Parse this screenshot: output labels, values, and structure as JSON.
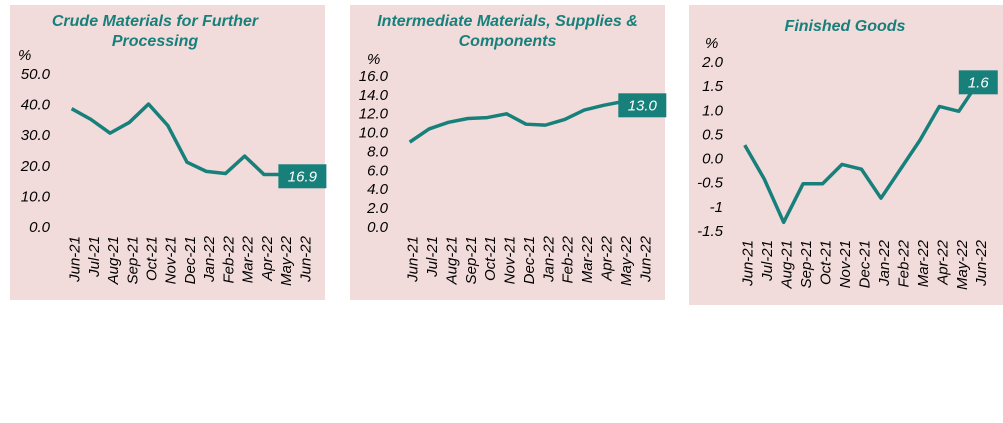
{
  "chart_data": [
    {
      "type": "line",
      "title": "Crude Materials for Further Processing",
      "y_label": "%",
      "categories": [
        "Jun-21",
        "Jul-21",
        "Aug-21",
        "Sep-21",
        "Oct-21",
        "Nov-21",
        "Dec-21",
        "Jan-22",
        "Feb-22",
        "Mar-22",
        "Apr-22",
        "May-22",
        "Jun-22"
      ],
      "values": [
        39,
        35.5,
        31,
        34.5,
        40.5,
        33.5,
        21.5,
        18.5,
        17.8,
        23.5,
        17.5,
        17.5,
        16.9
      ],
      "value_labels": [
        null,
        null,
        null,
        null,
        null,
        null,
        null,
        null,
        null,
        null,
        null,
        null,
        "16.9"
      ],
      "color": "#17807b",
      "ylim": [
        0,
        50
      ],
      "yticks": [
        {
          "value": 0,
          "label": "0.0"
        },
        {
          "value": 10,
          "label": "10.0"
        },
        {
          "value": 20,
          "label": "20.0"
        },
        {
          "value": 30,
          "label": "30.0"
        },
        {
          "value": 40,
          "label": "40.0"
        },
        {
          "value": 50,
          "label": "50.0"
        }
      ]
    },
    {
      "type": "line",
      "title": "Intermediate Materials, Supplies & Components",
      "y_label": "%",
      "categories": [
        "Jun-21",
        "Jul-21",
        "Aug-21",
        "Sep-21",
        "Oct-21",
        "Nov-21",
        "Dec-21",
        "Jan-22",
        "Feb-22",
        "Mar-22",
        "Apr-22",
        "May-22",
        "Jun-22"
      ],
      "values": [
        9.1,
        10.5,
        11.2,
        11.6,
        11.7,
        12.1,
        11.0,
        10.9,
        11.5,
        12.5,
        13.0,
        13.4,
        13.0
      ],
      "value_labels": [
        null,
        null,
        null,
        null,
        null,
        null,
        null,
        null,
        null,
        null,
        null,
        null,
        "13.0"
      ],
      "color": "#17807b",
      "ylim": [
        0,
        16
      ],
      "yticks": [
        {
          "value": 0,
          "label": "0.0"
        },
        {
          "value": 2,
          "label": "2.0"
        },
        {
          "value": 4,
          "label": "4.0"
        },
        {
          "value": 6,
          "label": "6.0"
        },
        {
          "value": 8,
          "label": "8.0"
        },
        {
          "value": 10,
          "label": "10.0"
        },
        {
          "value": 12,
          "label": "12.0"
        },
        {
          "value": 14,
          "label": "14.0"
        },
        {
          "value": 16,
          "label": "16.0"
        }
      ]
    },
    {
      "type": "line",
      "title": "Finished Goods",
      "y_label": "%",
      "categories": [
        "Jun-21",
        "Jul-21",
        "Aug-21",
        "Sep-21",
        "Oct-21",
        "Nov-21",
        "Dec-21",
        "Jan-22",
        "Feb-22",
        "Mar-22",
        "Apr-22",
        "May-22",
        "Jun-22"
      ],
      "values": [
        0.3,
        -0.4,
        -1.3,
        -0.5,
        -0.5,
        -0.1,
        -0.2,
        -0.8,
        -0.2,
        0.4,
        1.1,
        1.0,
        1.6
      ],
      "value_labels": [
        null,
        null,
        null,
        null,
        null,
        null,
        null,
        null,
        null,
        null,
        null,
        null,
        "1.6"
      ],
      "color": "#17807b",
      "ylim": [
        -1.5,
        2
      ],
      "yticks": [
        -1.5,
        -1,
        -0.5,
        {
          "value": 0,
          "label": "0.0"
        },
        0.5,
        {
          "value": 1,
          "label": "1.0"
        },
        1.5,
        {
          "value": 2,
          "label": "2.0"
        }
      ]
    }
  ]
}
